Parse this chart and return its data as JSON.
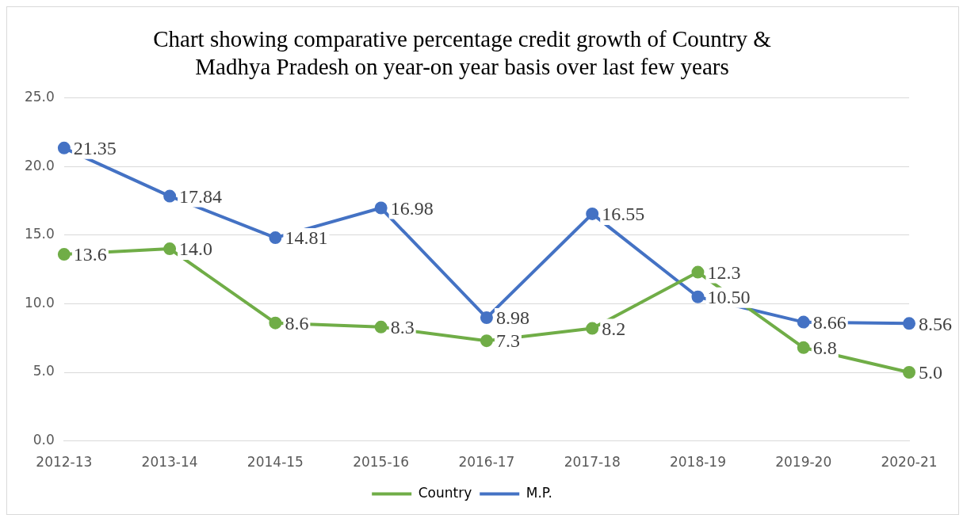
{
  "chart_data": {
    "type": "line",
    "title": "Chart showing comparative percentage credit growth of Country & Madhya Pradesh on year-on year basis over last few years",
    "categories": [
      "2012-13",
      "2013-14",
      "2014-15",
      "2015-16",
      "2016-17",
      "2017-18",
      "2018-19",
      "2019-20",
      "2020-21"
    ],
    "series": [
      {
        "name": "Country",
        "color": "#70ad47",
        "values": [
          13.6,
          14.0,
          8.6,
          8.3,
          7.3,
          8.2,
          12.3,
          6.8,
          5.0
        ],
        "value_labels": [
          "13.6",
          "14.0",
          "8.6",
          "8.3",
          "7.3",
          "8.2",
          "12.3",
          "6.8",
          "5.0"
        ]
      },
      {
        "name": "M.P.",
        "color": "#4472c4",
        "values": [
          21.35,
          17.84,
          14.81,
          16.98,
          8.98,
          16.55,
          10.5,
          8.66,
          8.56
        ],
        "value_labels": [
          "21.35",
          "17.84",
          "14.81",
          "16.98",
          "8.98",
          "16.55",
          "10.50",
          "8.66",
          "8.56"
        ]
      }
    ],
    "ylim": [
      0,
      25
    ],
    "yticks": [
      {
        "value": 0,
        "label": "0.0"
      },
      {
        "value": 5,
        "label": "5.0"
      },
      {
        "value": 10,
        "label": "10.0"
      },
      {
        "value": 15,
        "label": "15.0"
      },
      {
        "value": 20,
        "label": "20.0"
      },
      {
        "value": 25,
        "label": "25.0"
      }
    ],
    "grid": "y",
    "legend": "bottom",
    "marker": "circle",
    "line_style": "solid"
  }
}
